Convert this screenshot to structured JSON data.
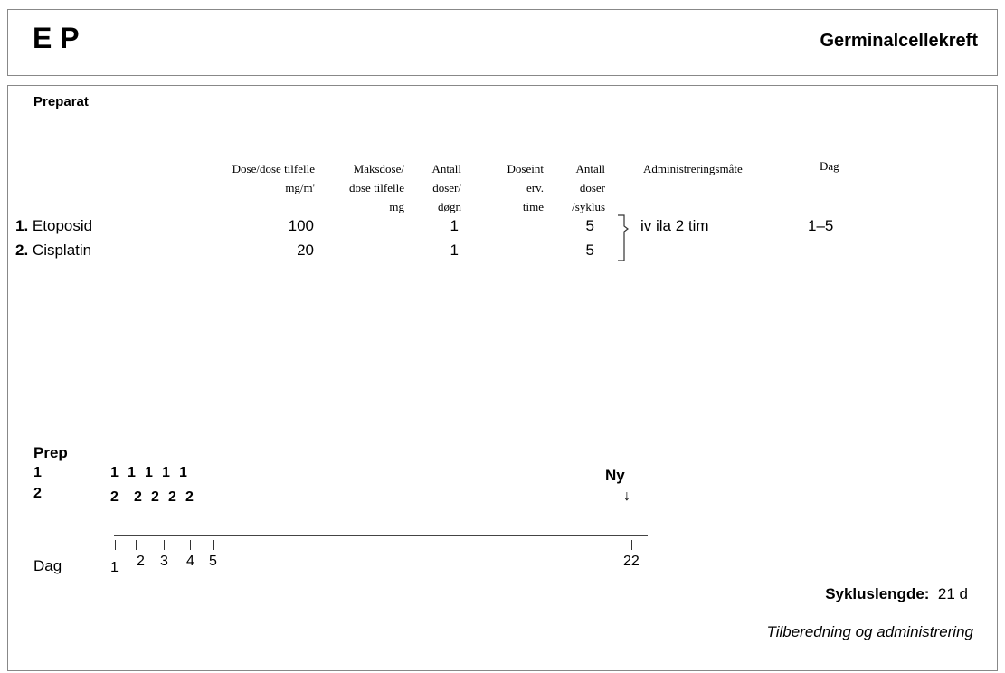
{
  "header": {
    "title": "E P",
    "category": "Germinalcellekreft"
  },
  "section_label": "Preparat",
  "columns": {
    "dose": [
      "Dose/dose tilfelle",
      "mg/m'"
    ],
    "maks": [
      "Maksdose/",
      "dose tilfelle",
      "mg"
    ],
    "antall_dogn": [
      "Antall",
      "doser/",
      "døgn"
    ],
    "doseint": [
      "Doseint",
      "erv.",
      "time"
    ],
    "antall_syklus": [
      "Antall",
      "doser",
      "/syklus"
    ],
    "admin": "Administreringsmåte",
    "dag": "Dag"
  },
  "drugs": [
    {
      "num": "1.",
      "name": "Etoposid",
      "dose": "100",
      "per_dogn": "1",
      "per_syklus": "5"
    },
    {
      "num": "2.",
      "name": "Cisplatin",
      "dose": "20",
      "per_dogn": "1",
      "per_syklus": "5"
    }
  ],
  "admin_value": "iv ila 2 tim",
  "dag_value": "1–5",
  "timeline": {
    "prep_label": "Prep",
    "row1_label": "1",
    "row2_label": "2",
    "ones": [
      "1",
      "1",
      "1",
      "1",
      "1"
    ],
    "twos": [
      "2",
      "2",
      "2",
      "2",
      "2"
    ],
    "new_label": "Ny",
    "arrow": "↓",
    "day_label": "Dag",
    "days": [
      "1",
      "2",
      "3",
      "4",
      "5",
      "22"
    ]
  },
  "cycle": {
    "label": "Sykluslengde:",
    "value": "21 d"
  },
  "footer_link": "Tilberedning og administrering"
}
